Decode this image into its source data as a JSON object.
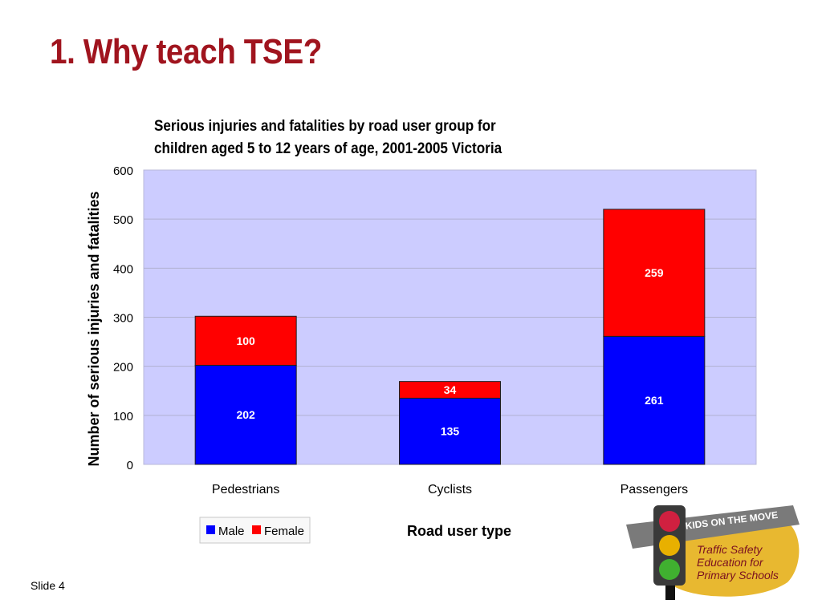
{
  "slide": {
    "title": "1. Why teach TSE?",
    "slide_label": "Slide",
    "slide_number": "4"
  },
  "chart_data": {
    "type": "bar",
    "stacked": true,
    "title_lines": [
      "Serious injuries and fatalities by road user group for",
      "children aged 5 to 12 years of age, 2001-2005 Victoria"
    ],
    "xlabel": "Road user type",
    "ylabel": "Number of serious injuries and fatalities",
    "categories": [
      "Pedestrians",
      "Cyclists",
      "Passengers"
    ],
    "series": [
      {
        "name": "Male",
        "color": "#0000ff",
        "values": [
          202,
          135,
          261
        ]
      },
      {
        "name": "Female",
        "color": "#ff0000",
        "values": [
          100,
          34,
          259
        ]
      }
    ],
    "ylim": [
      0,
      600
    ],
    "yticks": [
      0,
      100,
      200,
      300,
      400,
      500,
      600
    ],
    "grid": true,
    "plot_background": "#ccccff",
    "legend_position": "bottom-left"
  },
  "logo": {
    "banner_text": "KIDS ON THE MOVE",
    "lines": [
      "Traffic Safety",
      "Education for",
      "Primary Schools"
    ]
  },
  "colors": {
    "title": "#a0141e",
    "male": "#0000ff",
    "female": "#ff0000",
    "logo_gold": "#e8b830"
  }
}
